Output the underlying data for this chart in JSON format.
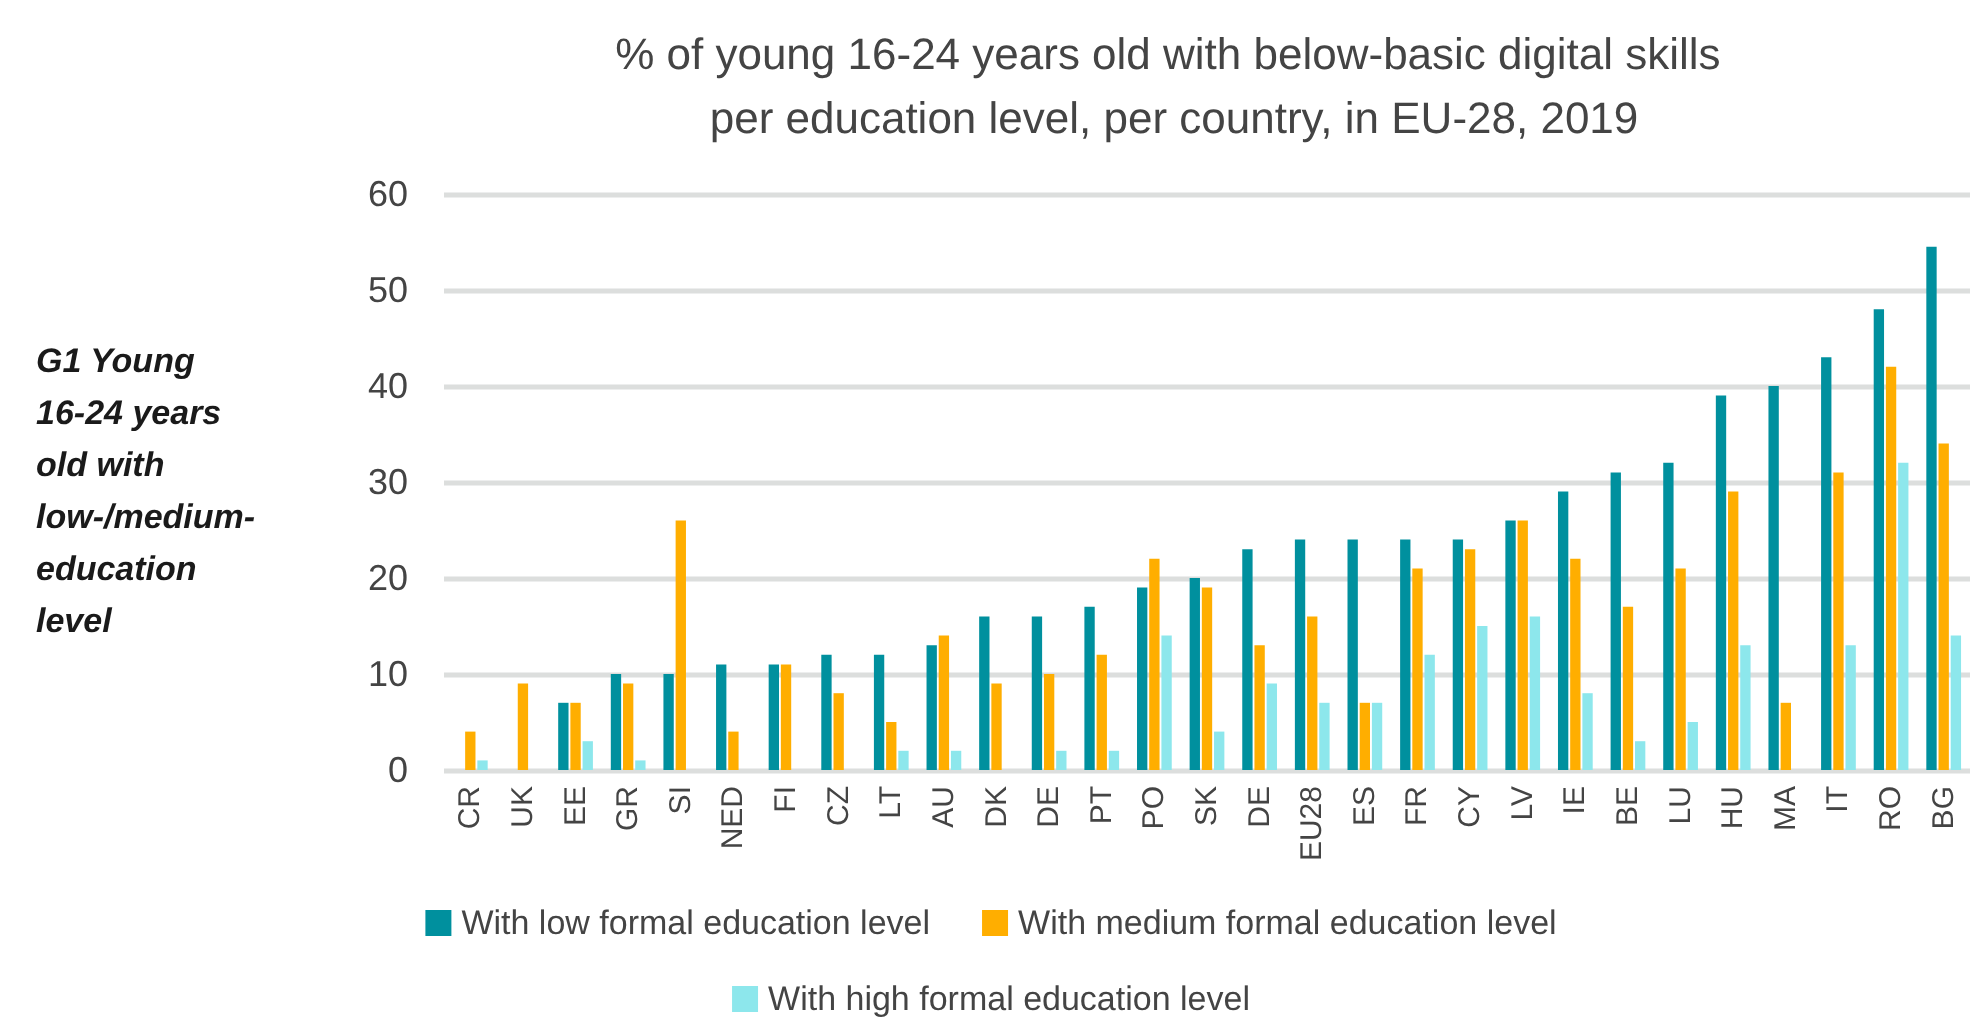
{
  "chart_data": {
    "type": "bar",
    "title": "% of young 16-24 years old with below-basic digital skills per education level, per country, in EU-28, 2019",
    "annotations": [
      "G1 Young 16-24 years old with low-/medium-education level"
    ],
    "categories": [
      "CR",
      "UK",
      "EE",
      "GR",
      "SI",
      "NED",
      "FI",
      "CZ",
      "LT",
      "AU",
      "DK",
      "DE",
      "PT",
      "PO",
      "SK",
      "DE",
      "EU28",
      "ES",
      "FR",
      "CY",
      "LV",
      "IE",
      "BE",
      "LU",
      "HU",
      "MA",
      "IT",
      "RO",
      "BG"
    ],
    "series": [
      {
        "name": "With low formal education level",
        "color": "#00909e",
        "values": [
          null,
          null,
          7,
          10,
          10,
          11,
          11,
          12,
          12,
          13,
          16,
          16,
          17,
          19,
          20,
          23,
          24,
          24,
          24,
          24,
          26,
          29,
          31,
          32,
          39,
          40,
          43,
          48,
          54.5
        ]
      },
      {
        "name": "With medium formal education level",
        "color": "#ffae00",
        "values": [
          4,
          9,
          7,
          9,
          26,
          4,
          11,
          8,
          5,
          14,
          9,
          10,
          12,
          22,
          19,
          13,
          16,
          7,
          21,
          23,
          26,
          22,
          17,
          21,
          29,
          7,
          31,
          42,
          34
        ]
      },
      {
        "name": "With high formal education level",
        "color": "#8de7ec",
        "values": [
          1,
          null,
          3,
          1,
          null,
          null,
          null,
          null,
          2,
          2,
          null,
          2,
          2,
          14,
          4,
          9,
          7,
          7,
          12,
          15,
          16,
          8,
          3,
          5,
          13,
          null,
          13,
          32,
          14
        ]
      }
    ],
    "ylim": [
      0,
      60
    ],
    "yticks": [
      0,
      10,
      20,
      30,
      40,
      50,
      60
    ],
    "grid": "y",
    "legend": "bottom"
  }
}
